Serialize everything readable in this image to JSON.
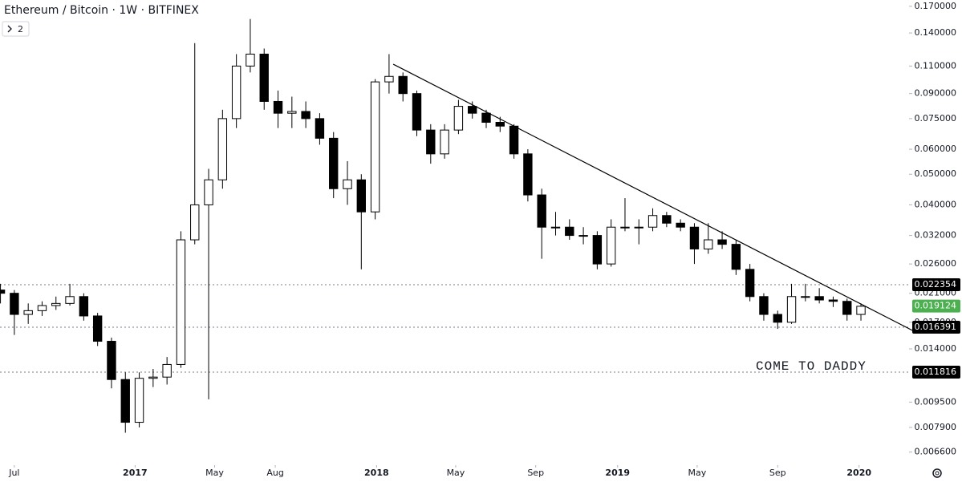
{
  "chart_data": {
    "type": "candlestick",
    "title": "Ethereum / Bitcoin · 1W · BITFINEX",
    "indicator_count": "2",
    "log_scale": true,
    "up_color": "#ffffff",
    "down_color": "#000000",
    "x": [
      -3,
      0,
      3,
      6,
      9,
      12,
      15,
      18,
      21,
      24,
      27,
      30,
      33,
      36,
      39,
      42,
      45,
      48,
      51,
      54,
      57,
      60,
      63,
      66,
      69,
      72,
      75,
      78,
      81,
      84,
      87,
      90,
      93,
      96,
      99,
      102,
      105,
      108,
      111,
      114,
      117,
      120,
      123,
      126,
      129,
      132,
      135,
      138,
      141,
      144,
      147,
      150,
      153,
      156,
      159,
      162,
      165,
      168,
      171,
      174,
      177,
      180,
      183
    ],
    "open": [
      0.0215,
      0.021,
      0.018,
      0.0185,
      0.0192,
      0.0195,
      0.0205,
      0.0178,
      0.0148,
      0.0112,
      0.0082,
      0.0113,
      0.0114,
      0.0125,
      0.031,
      0.04,
      0.048,
      0.075,
      0.11,
      0.12,
      0.085,
      0.078,
      0.079,
      0.075,
      0.065,
      0.045,
      0.048,
      0.038,
      0.098,
      0.102,
      0.09,
      0.069,
      0.058,
      0.069,
      0.082,
      0.078,
      0.073,
      0.071,
      0.058,
      0.043,
      0.034,
      0.034,
      0.032,
      0.032,
      0.026,
      0.034,
      0.034,
      0.034,
      0.037,
      0.035,
      0.034,
      0.029,
      0.031,
      0.03,
      0.025,
      0.0205,
      0.018,
      0.017,
      0.0205,
      0.0205,
      0.02,
      0.0198,
      0.018
    ],
    "high": [
      0.0225,
      0.0215,
      0.0195,
      0.0198,
      0.0205,
      0.0225,
      0.021,
      0.0182,
      0.0152,
      0.0118,
      0.0118,
      0.0121,
      0.0132,
      0.033,
      0.13,
      0.052,
      0.08,
      0.12,
      0.155,
      0.125,
      0.092,
      0.088,
      0.085,
      0.078,
      0.068,
      0.055,
      0.05,
      0.1,
      0.12,
      0.105,
      0.092,
      0.072,
      0.072,
      0.086,
      0.085,
      0.08,
      0.076,
      0.072,
      0.06,
      0.045,
      0.038,
      0.036,
      0.034,
      0.033,
      0.036,
      0.042,
      0.036,
      0.039,
      0.038,
      0.036,
      0.035,
      0.035,
      0.033,
      0.031,
      0.026,
      0.021,
      0.0185,
      0.0225,
      0.0225,
      0.0218,
      0.0205,
      0.0202,
      0.0195
    ],
    "low": [
      0.0195,
      0.0155,
      0.0168,
      0.0178,
      0.0186,
      0.0192,
      0.0172,
      0.0143,
      0.0105,
      0.0076,
      0.0079,
      0.0106,
      0.0108,
      0.0122,
      0.03,
      0.0097,
      0.045,
      0.07,
      0.105,
      0.08,
      0.07,
      0.07,
      0.07,
      0.062,
      0.042,
      0.04,
      0.025,
      0.036,
      0.09,
      0.085,
      0.066,
      0.054,
      0.056,
      0.067,
      0.075,
      0.07,
      0.068,
      0.056,
      0.041,
      0.027,
      0.032,
      0.031,
      0.03,
      0.025,
      0.0255,
      0.033,
      0.03,
      0.033,
      0.034,
      0.033,
      0.026,
      0.028,
      0.029,
      0.024,
      0.0198,
      0.0172,
      0.0162,
      0.0168,
      0.0198,
      0.0195,
      0.019,
      0.0172,
      0.0172
    ],
    "close": [
      0.021,
      0.018,
      0.0185,
      0.0192,
      0.0195,
      0.0205,
      0.0178,
      0.0148,
      0.0112,
      0.0082,
      0.0113,
      0.0114,
      0.0125,
      0.031,
      0.04,
      0.048,
      0.075,
      0.11,
      0.12,
      0.085,
      0.078,
      0.079,
      0.075,
      0.065,
      0.045,
      0.048,
      0.038,
      0.098,
      0.102,
      0.09,
      0.069,
      0.058,
      0.069,
      0.082,
      0.078,
      0.073,
      0.071,
      0.058,
      0.043,
      0.034,
      0.034,
      0.032,
      0.032,
      0.026,
      0.034,
      0.034,
      0.034,
      0.037,
      0.035,
      0.034,
      0.029,
      0.031,
      0.03,
      0.025,
      0.0205,
      0.018,
      0.017,
      0.0205,
      0.0205,
      0.02,
      0.0198,
      0.018,
      0.0191
    ],
    "xlim": [
      -3.1,
      193.4
    ],
    "ylim": [
      0.006,
      0.178
    ],
    "xticks": [
      {
        "value": 0,
        "label": "Jul"
      },
      {
        "value": 26.1,
        "label": "2017"
      },
      {
        "value": 43.3,
        "label": "May"
      },
      {
        "value": 56.4,
        "label": "Aug"
      },
      {
        "value": 78.3,
        "label": "2018"
      },
      {
        "value": 95.4,
        "label": "May"
      },
      {
        "value": 112.7,
        "label": "Sep"
      },
      {
        "value": 130.4,
        "label": "2019"
      },
      {
        "value": 147.6,
        "label": "May"
      },
      {
        "value": 165,
        "label": "Sep"
      },
      {
        "value": 182.6,
        "label": "2020"
      }
    ],
    "yticks": [
      {
        "value": 0.17,
        "label": "0.170000"
      },
      {
        "value": 0.14,
        "label": "0.140000"
      },
      {
        "value": 0.11,
        "label": "0.110000"
      },
      {
        "value": 0.09,
        "label": "0.090000"
      },
      {
        "value": 0.075,
        "label": "0.075000"
      },
      {
        "value": 0.06,
        "label": "0.060000"
      },
      {
        "value": 0.05,
        "label": "0.050000"
      },
      {
        "value": 0.04,
        "label": "0.040000"
      },
      {
        "value": 0.032,
        "label": "0.032000"
      },
      {
        "value": 0.026,
        "label": "0.026000"
      },
      {
        "value": 0.021,
        "label": "0.021000"
      },
      {
        "value": 0.017,
        "label": "0.017000"
      },
      {
        "value": 0.014,
        "label": "0.014000"
      },
      {
        "value": 0.0095,
        "label": "0.009500"
      },
      {
        "value": 0.0079,
        "label": "0.007900"
      },
      {
        "value": 0.0066,
        "label": "0.006600"
      }
    ],
    "levels": [
      0.022354,
      0.016391,
      0.011816
    ],
    "last_price": 0.019124,
    "last_price_color": "#4caf50",
    "trendline": {
      "x": [
        81.9,
        194.3
      ],
      "y": [
        0.1115,
        0.01597
      ]
    },
    "annotation": "COME TO DADDY"
  }
}
